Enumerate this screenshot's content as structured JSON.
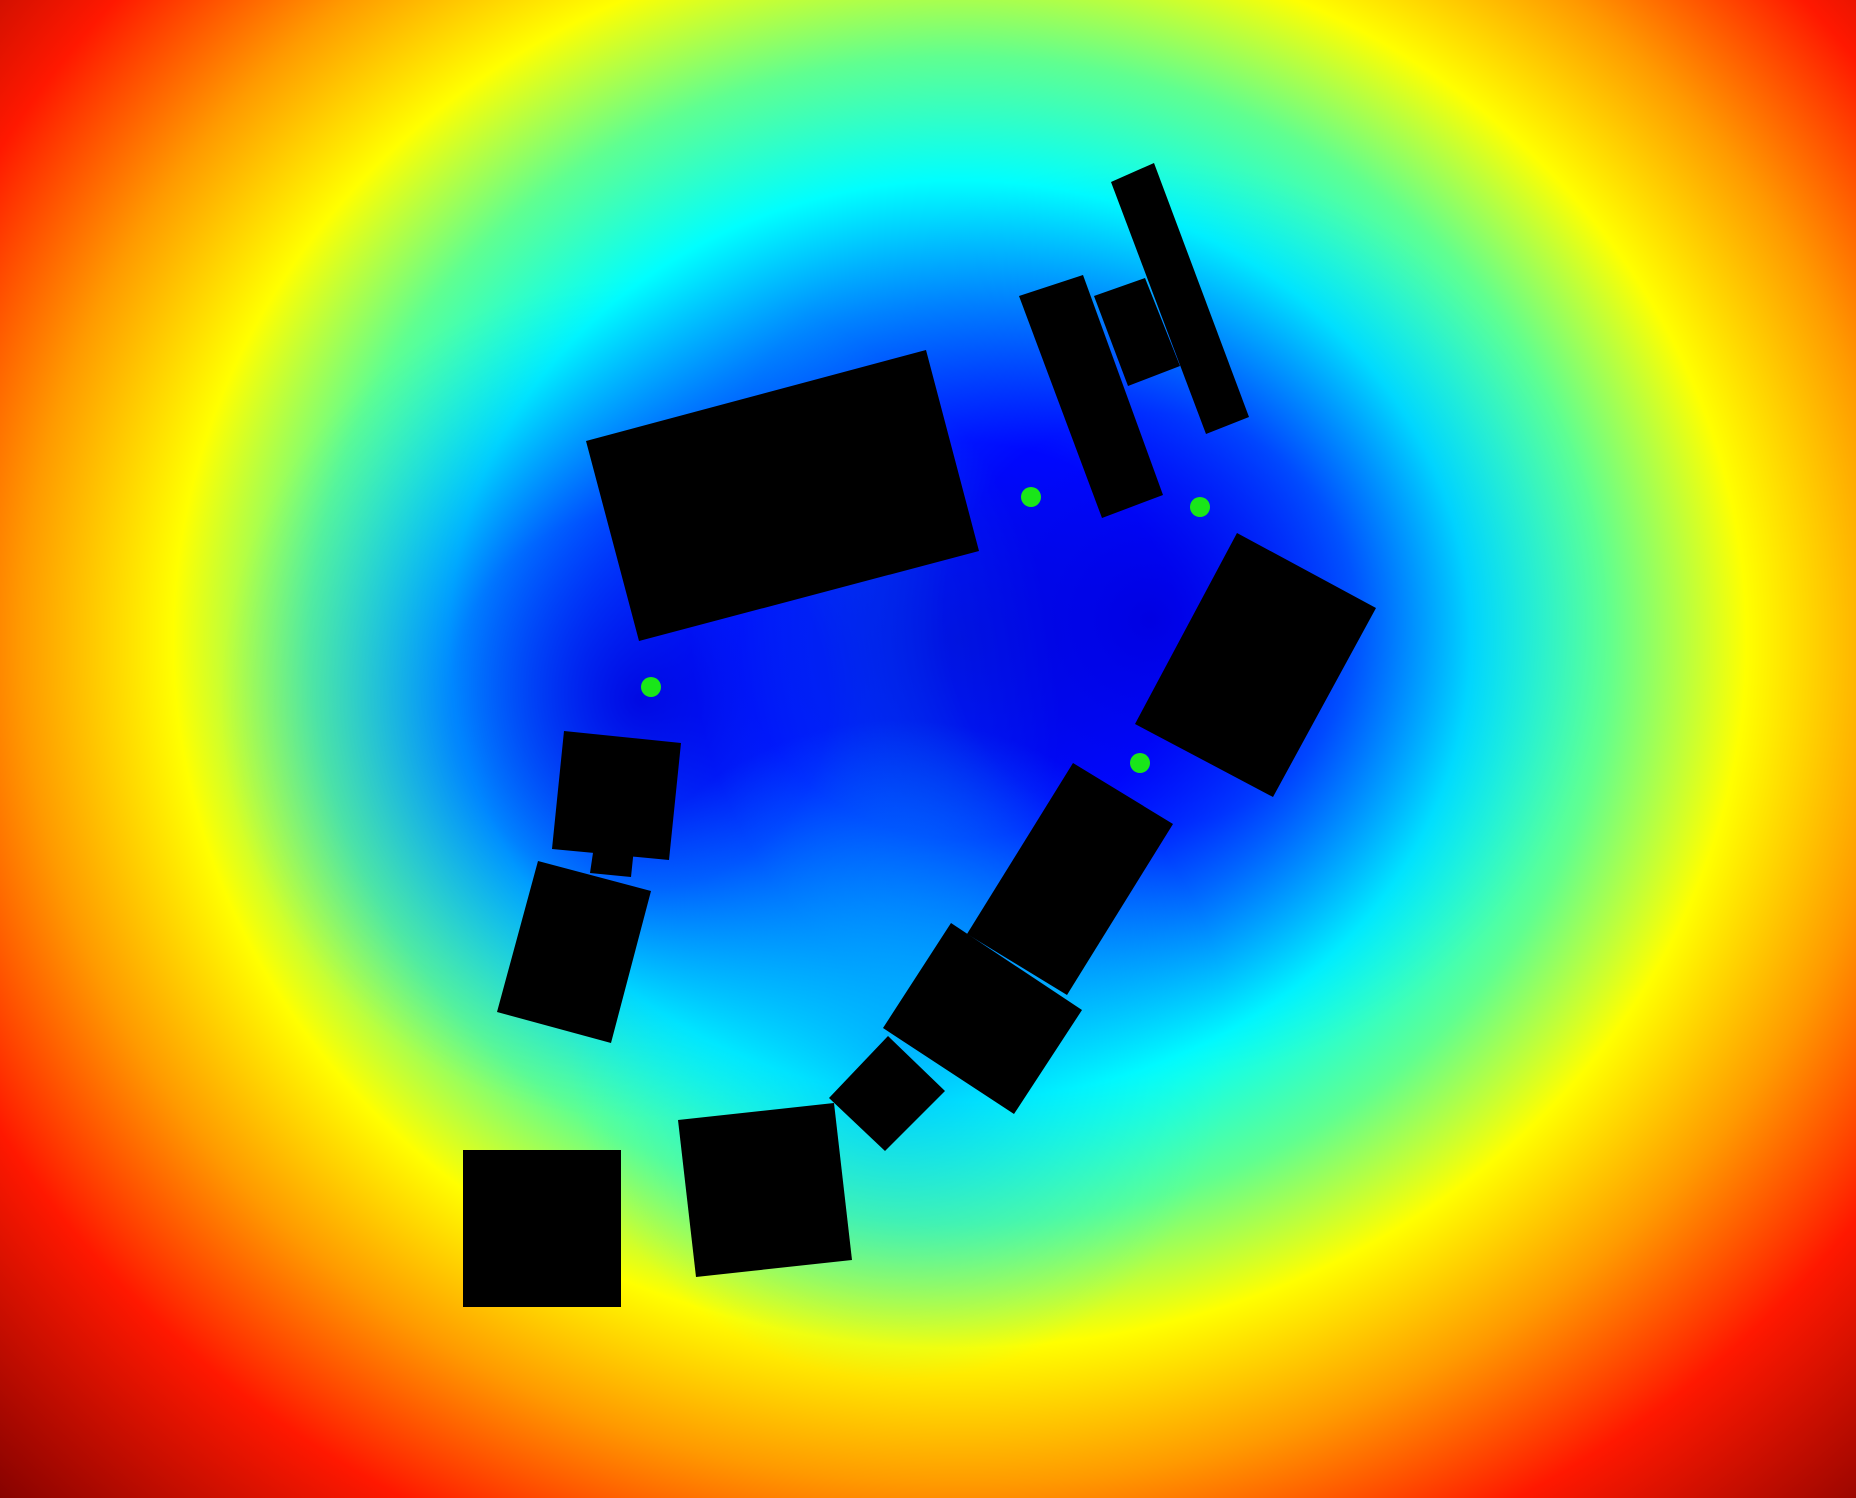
{
  "scene": {
    "kind": "distance-field",
    "colormap": "jet",
    "obstacle_color": "#000000",
    "marker_color": "#19e619",
    "colormap_stops": [
      "#00007f",
      "#0000ff",
      "#00ffff",
      "#ffff00",
      "#ff0000",
      "#7f0000"
    ],
    "obstacle_count": 15,
    "marker_count": 4
  }
}
